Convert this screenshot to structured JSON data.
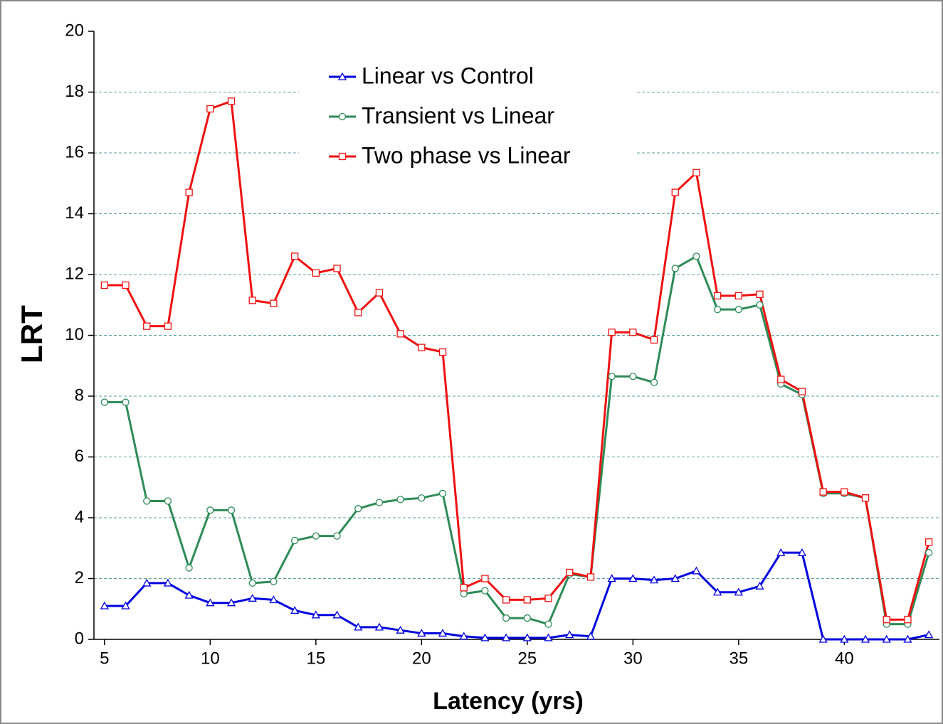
{
  "chart_data": {
    "type": "line",
    "xlabel": "Latency (yrs)",
    "ylabel": "LRT",
    "x": [
      5,
      6,
      7,
      8,
      9,
      10,
      11,
      12,
      13,
      14,
      15,
      16,
      17,
      18,
      19,
      20,
      21,
      22,
      23,
      24,
      25,
      26,
      27,
      28,
      29,
      30,
      31,
      32,
      33,
      34,
      35,
      36,
      37,
      38,
      39,
      40,
      41,
      42,
      43,
      44
    ],
    "series": [
      {
        "name": "Linear vs Control",
        "color": "#0000dd",
        "marker": "triangle",
        "values": [
          1.1,
          1.1,
          1.85,
          1.85,
          1.45,
          1.2,
          1.2,
          1.35,
          1.3,
          0.95,
          0.8,
          0.8,
          0.4,
          0.4,
          0.3,
          0.2,
          0.2,
          0.1,
          0.05,
          0.05,
          0.05,
          0.05,
          0.15,
          0.1,
          2.0,
          2.0,
          1.95,
          2.0,
          2.25,
          1.55,
          1.55,
          1.75,
          2.85,
          2.85,
          0,
          0,
          0,
          0,
          0,
          0.15
        ]
      },
      {
        "name": "Transient vs Linear",
        "color": "#2e8b57",
        "marker": "circle",
        "values": [
          7.8,
          7.8,
          4.55,
          4.55,
          2.35,
          4.25,
          4.25,
          1.85,
          1.9,
          3.25,
          3.4,
          3.4,
          4.3,
          4.5,
          4.6,
          4.65,
          4.8,
          1.5,
          1.6,
          0.7,
          0.7,
          0.5,
          2.15,
          2.05,
          8.65,
          8.65,
          8.45,
          12.2,
          12.6,
          10.85,
          10.85,
          11.0,
          8.4,
          8.05,
          4.8,
          4.8,
          4.65,
          0.5,
          0.5,
          2.85
        ]
      },
      {
        "name": "Two phase vs Linear",
        "color": "#ee1111",
        "marker": "square",
        "values": [
          11.65,
          11.65,
          10.3,
          10.3,
          14.7,
          17.45,
          17.7,
          11.15,
          11.05,
          12.6,
          12.05,
          12.2,
          10.75,
          11.4,
          10.05,
          9.6,
          9.45,
          1.7,
          2.0,
          1.3,
          1.3,
          1.35,
          2.2,
          2.05,
          10.1,
          10.1,
          9.85,
          14.7,
          15.35,
          11.3,
          11.3,
          11.35,
          8.55,
          8.15,
          4.85,
          4.85,
          4.65,
          0.65,
          0.65,
          3.2
        ]
      }
    ],
    "xlim": [
      4.5,
      44.5
    ],
    "xticks": [
      5,
      10,
      15,
      20,
      25,
      30,
      35,
      40
    ],
    "ylim": [
      0,
      20
    ],
    "yticks": [
      0,
      2,
      4,
      6,
      8,
      10,
      12,
      14,
      16,
      18,
      20
    ],
    "grid": true,
    "legend": "top"
  }
}
